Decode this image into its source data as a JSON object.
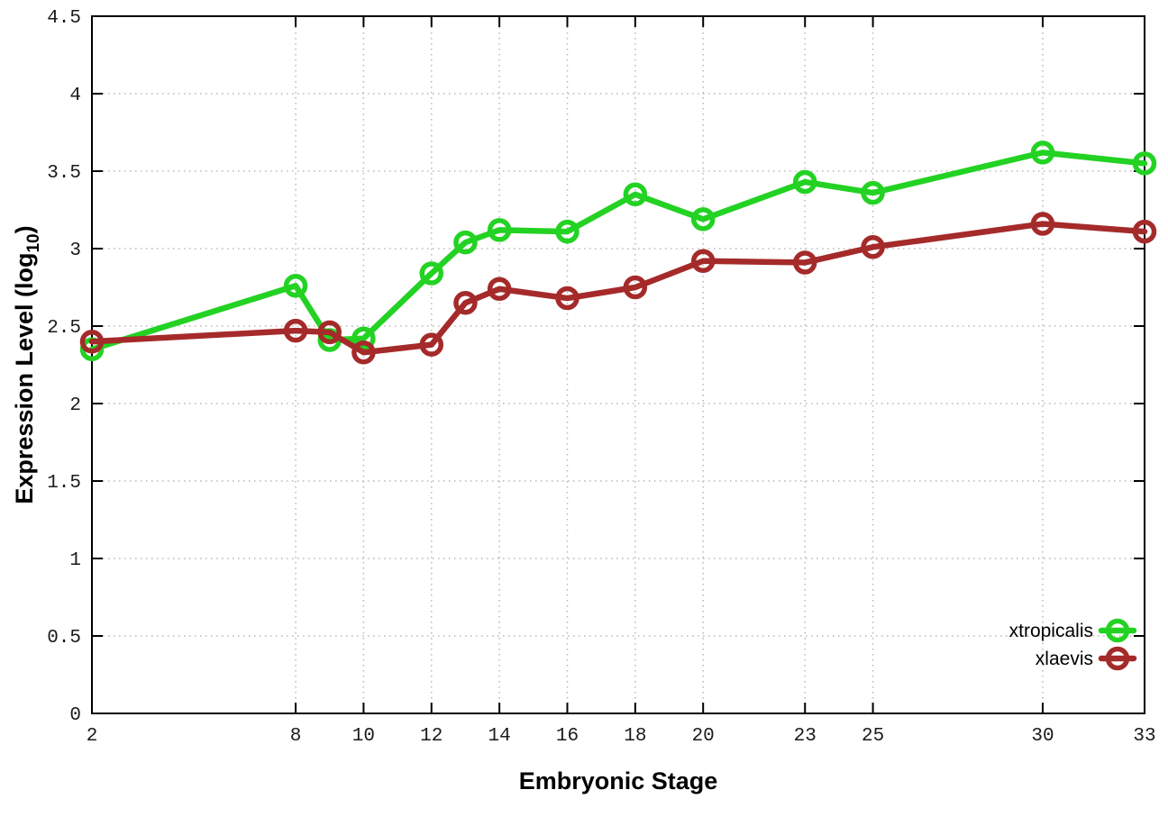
{
  "chart_data": {
    "type": "line",
    "title": "",
    "xlabel": "Embryonic Stage",
    "ylabel": {
      "text": "Expression Level (log",
      "sub": "10",
      "suffix": ")"
    },
    "xlim": [
      2,
      33
    ],
    "ylim": [
      0,
      4.5
    ],
    "x_ticks": [
      2,
      8,
      10,
      12,
      14,
      16,
      18,
      20,
      23,
      25,
      30,
      33
    ],
    "y_ticks": [
      0,
      0.5,
      1,
      1.5,
      2,
      2.5,
      3,
      3.5,
      4,
      4.5
    ],
    "grid": true,
    "legend_position": "bottom-right",
    "x": [
      2,
      8,
      9,
      10,
      12,
      13,
      14,
      16,
      18,
      20,
      23,
      25,
      30,
      33
    ],
    "series": [
      {
        "name": "xtropicalis",
        "color": "#23d223",
        "values": [
          2.35,
          2.76,
          2.41,
          2.42,
          2.84,
          3.04,
          3.12,
          3.11,
          3.35,
          3.19,
          3.43,
          3.36,
          3.62,
          3.55
        ]
      },
      {
        "name": "xlaevis",
        "color": "#a52a2a",
        "values": [
          2.4,
          2.47,
          2.46,
          2.33,
          2.38,
          2.65,
          2.74,
          2.68,
          2.75,
          2.92,
          2.91,
          3.01,
          3.16,
          3.11
        ]
      }
    ],
    "style": {
      "background": "#ffffff",
      "border_color": "#000000",
      "grid_color": "#b8b8b8",
      "tick_label_color": "#1a1a1a",
      "axis_title_color": "#000000",
      "legend_text_color": "#000000"
    }
  }
}
